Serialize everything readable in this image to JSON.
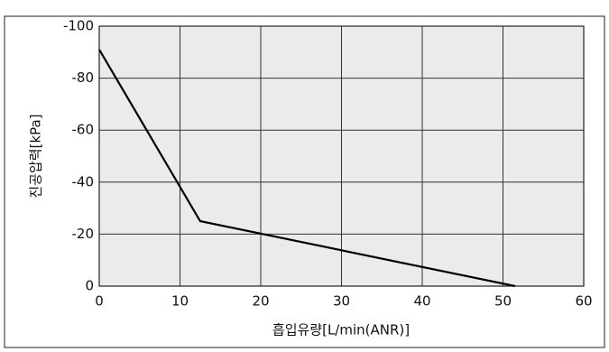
{
  "chart_data": {
    "type": "line",
    "x_label": "흡입유량[L/min(ANR)]",
    "y_label": "진공압력[kPa]",
    "series": [
      {
        "color": "#000000",
        "x": [
          0,
          12.5,
          51.5
        ],
        "values": [
          -91,
          -25,
          0
        ]
      }
    ],
    "xlim": [
      0,
      60
    ],
    "xticks": [
      0,
      10,
      20,
      30,
      40,
      50,
      60
    ],
    "ylim": [
      0,
      -100
    ],
    "yticks": [
      -100,
      -80,
      -60,
      -40,
      -20,
      0
    ],
    "grid": true
  }
}
